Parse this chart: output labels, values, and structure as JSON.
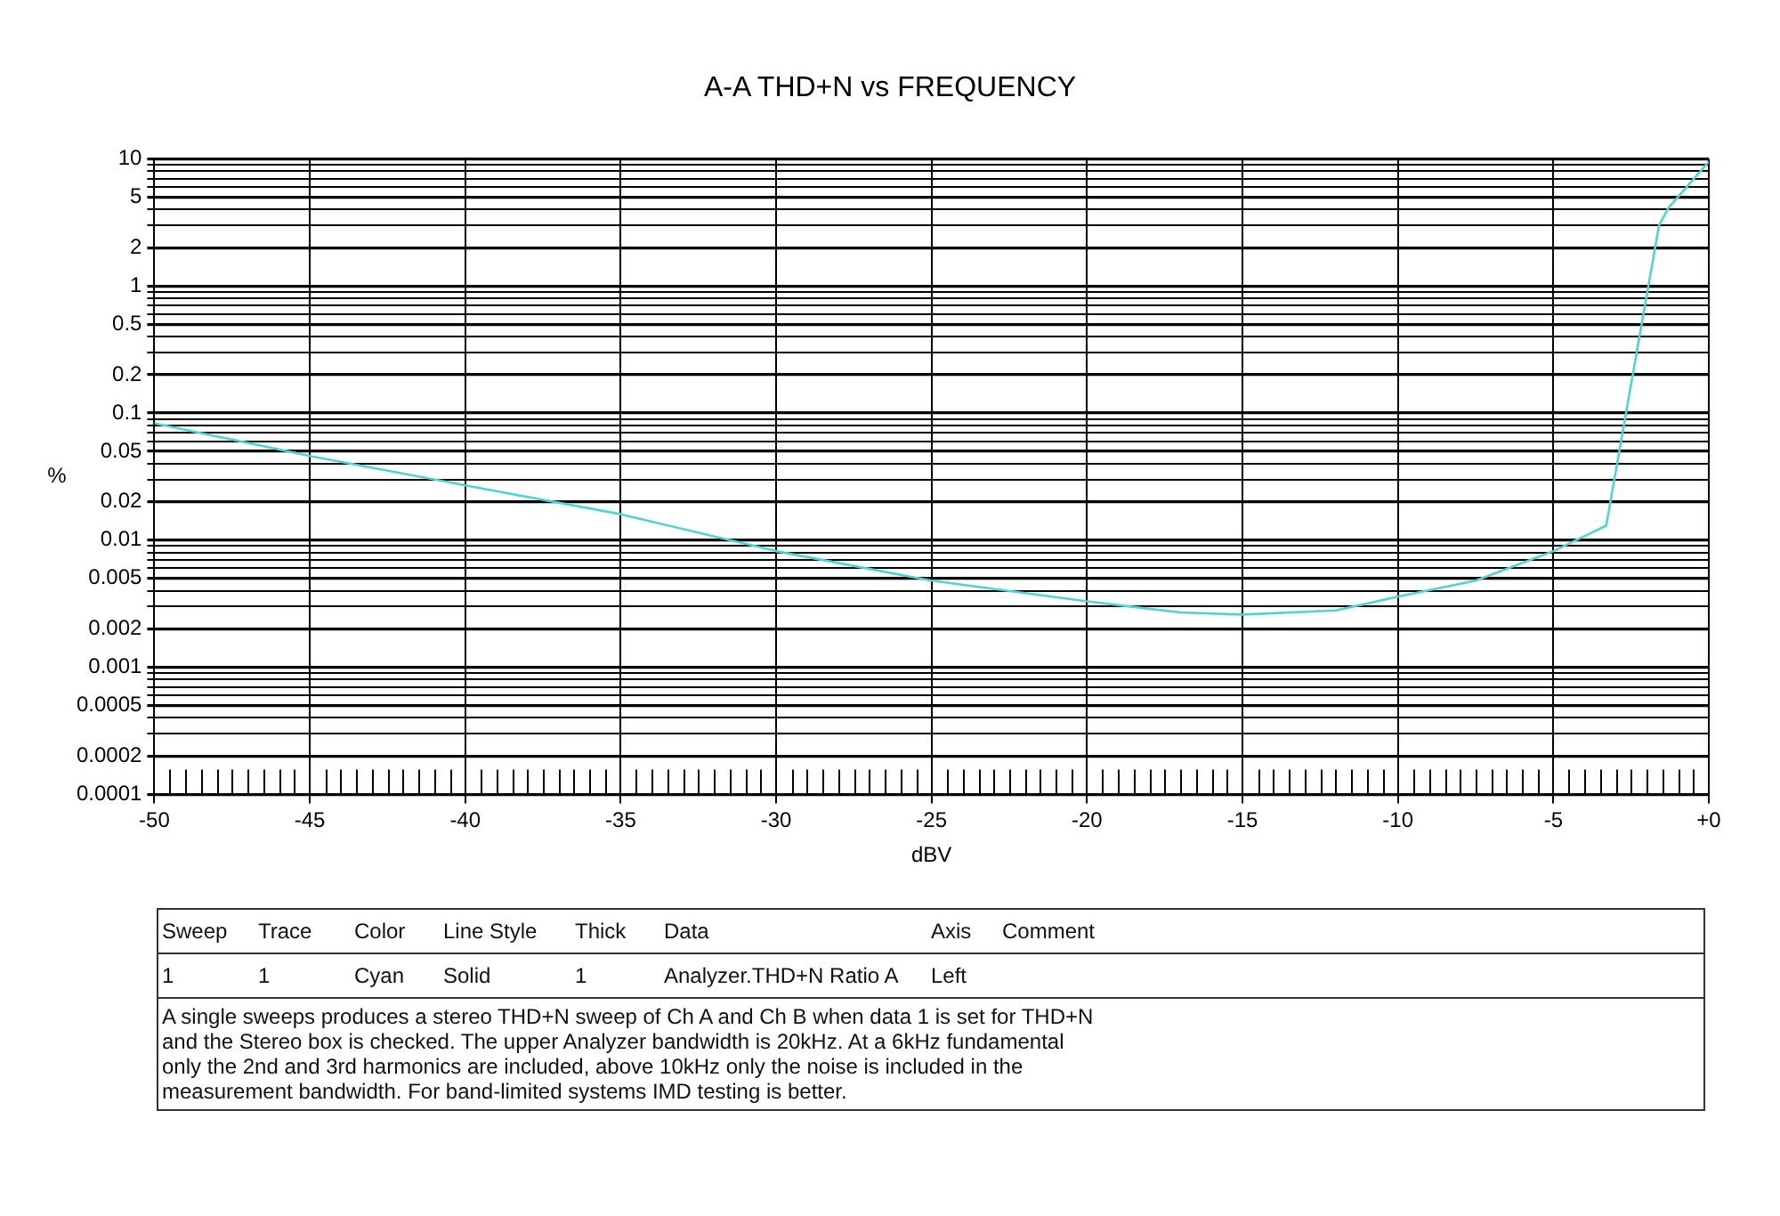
{
  "chart_data": {
    "type": "line",
    "title": "A-A THD+N vs FREQUENCY",
    "xlabel": "dBV",
    "ylabel": "%",
    "x": [
      -50,
      -45,
      -40,
      -35,
      -30,
      -25,
      -20,
      -17,
      -15,
      -12,
      -10,
      -7.5,
      -5,
      -3.3,
      -1.6,
      -1.3,
      0
    ],
    "series": [
      {
        "color": "#4dd5d5",
        "values": [
          0.083,
          0.046,
          0.027,
          0.016,
          0.0082,
          0.0048,
          0.0033,
          0.0027,
          0.0026,
          0.0028,
          0.0036,
          0.0048,
          0.0082,
          0.013,
          3,
          4.1,
          9.5
        ]
      }
    ],
    "log": "y",
    "xlim": [
      -50,
      0
    ],
    "ylim": [
      0.0001,
      10
    ],
    "xticks": [
      -50,
      {
        "value": -49.5,
        "label": null
      },
      {
        "value": -49,
        "label": null
      },
      {
        "value": -48.5,
        "label": null
      },
      {
        "value": -48,
        "label": null
      },
      {
        "value": -47.5,
        "label": null
      },
      {
        "value": -47,
        "label": null
      },
      {
        "value": -46.5,
        "label": null
      },
      {
        "value": -46,
        "label": null
      },
      {
        "value": -45.5,
        "label": null
      },
      -45,
      {
        "value": -44.5,
        "label": null
      },
      {
        "value": -44,
        "label": null
      },
      {
        "value": -43.5,
        "label": null
      },
      {
        "value": -43,
        "label": null
      },
      {
        "value": -42.5,
        "label": null
      },
      {
        "value": -42,
        "label": null
      },
      {
        "value": -41.5,
        "label": null
      },
      {
        "value": -41,
        "label": null
      },
      {
        "value": -40.5,
        "label": null
      },
      -40,
      {
        "value": -39.5,
        "label": null
      },
      {
        "value": -39,
        "label": null
      },
      {
        "value": -38.5,
        "label": null
      },
      {
        "value": -38,
        "label": null
      },
      {
        "value": -37.5,
        "label": null
      },
      {
        "value": -37,
        "label": null
      },
      {
        "value": -36.5,
        "label": null
      },
      {
        "value": -36,
        "label": null
      },
      {
        "value": -35.5,
        "label": null
      },
      -35,
      {
        "value": -34.5,
        "label": null
      },
      {
        "value": -34,
        "label": null
      },
      {
        "value": -33.5,
        "label": null
      },
      {
        "value": -33,
        "label": null
      },
      {
        "value": -32.5,
        "label": null
      },
      {
        "value": -32,
        "label": null
      },
      {
        "value": -31.5,
        "label": null
      },
      {
        "value": -31,
        "label": null
      },
      {
        "value": -30.5,
        "label": null
      },
      -30,
      {
        "value": -29.5,
        "label": null
      },
      {
        "value": -29,
        "label": null
      },
      {
        "value": -28.5,
        "label": null
      },
      {
        "value": -28,
        "label": null
      },
      {
        "value": -27.5,
        "label": null
      },
      {
        "value": -27,
        "label": null
      },
      {
        "value": -26.5,
        "label": null
      },
      {
        "value": -26,
        "label": null
      },
      {
        "value": -25.5,
        "label": null
      },
      -25,
      {
        "value": -24.5,
        "label": null
      },
      {
        "value": -24,
        "label": null
      },
      {
        "value": -23.5,
        "label": null
      },
      {
        "value": -23,
        "label": null
      },
      {
        "value": -22.5,
        "label": null
      },
      {
        "value": -22,
        "label": null
      },
      {
        "value": -21.5,
        "label": null
      },
      {
        "value": -21,
        "label": null
      },
      {
        "value": -20.5,
        "label": null
      },
      -20,
      {
        "value": -19.5,
        "label": null
      },
      {
        "value": -19,
        "label": null
      },
      {
        "value": -18.5,
        "label": null
      },
      {
        "value": -18,
        "label": null
      },
      {
        "value": -17.5,
        "label": null
      },
      {
        "value": -17,
        "label": null
      },
      {
        "value": -16.5,
        "label": null
      },
      {
        "value": -16,
        "label": null
      },
      {
        "value": -15.5,
        "label": null
      },
      -15,
      {
        "value": -14.5,
        "label": null
      },
      {
        "value": -14,
        "label": null
      },
      {
        "value": -13.5,
        "label": null
      },
      {
        "value": -13,
        "label": null
      },
      {
        "value": -12.5,
        "label": null
      },
      {
        "value": -12,
        "label": null
      },
      {
        "value": -11.5,
        "label": null
      },
      {
        "value": -11,
        "label": null
      },
      {
        "value": -10.5,
        "label": null
      },
      -10,
      {
        "value": -9.5,
        "label": null
      },
      {
        "value": -9,
        "label": null
      },
      {
        "value": -8.5,
        "label": null
      },
      {
        "value": -8,
        "label": null
      },
      {
        "value": -7.5,
        "label": null
      },
      {
        "value": -7,
        "label": null
      },
      {
        "value": -6.5,
        "label": null
      },
      {
        "value": -6,
        "label": null
      },
      {
        "value": -5.5,
        "label": null
      },
      -5,
      {
        "value": -4.5,
        "label": null
      },
      {
        "value": -4,
        "label": null
      },
      {
        "value": -3.5,
        "label": null
      },
      {
        "value": -3,
        "label": null
      },
      {
        "value": -2.5,
        "label": null
      },
      {
        "value": -2,
        "label": null
      },
      {
        "value": -1.5,
        "label": null
      },
      {
        "value": -1,
        "label": null
      },
      {
        "value": -0.5,
        "label": null
      },
      {
        "value": 0,
        "label": "+0"
      }
    ],
    "yticks": [
      0.0001,
      0.0002,
      {
        "value": 0.0003,
        "label": null
      },
      {
        "value": 0.0004,
        "label": null
      },
      0.0005,
      {
        "value": 0.0006,
        "label": null
      },
      {
        "value": 0.0007,
        "label": null
      },
      {
        "value": 0.0008,
        "label": null
      },
      {
        "value": 0.0009,
        "label": null
      },
      0.001,
      0.002,
      {
        "value": 0.003,
        "label": null
      },
      {
        "value": 0.004,
        "label": null
      },
      0.005,
      {
        "value": 0.006,
        "label": null
      },
      {
        "value": 0.007,
        "label": null
      },
      {
        "value": 0.008,
        "label": null
      },
      {
        "value": 0.009,
        "label": null
      },
      0.01,
      0.02,
      {
        "value": 0.03,
        "label": null
      },
      {
        "value": 0.04,
        "label": null
      },
      0.05,
      {
        "value": 0.06,
        "label": null
      },
      {
        "value": 0.07,
        "label": null
      },
      {
        "value": 0.08,
        "label": null
      },
      {
        "value": 0.09,
        "label": null
      },
      0.1,
      0.2,
      {
        "value": 0.3,
        "label": null
      },
      {
        "value": 0.4,
        "label": null
      },
      0.5,
      {
        "value": 0.6,
        "label": null
      },
      {
        "value": 0.7,
        "label": null
      },
      {
        "value": 0.8,
        "label": null
      },
      {
        "value": 0.9,
        "label": null
      },
      1,
      2,
      {
        "value": 3,
        "label": null
      },
      {
        "value": 4,
        "label": null
      },
      5,
      {
        "value": 6,
        "label": null
      },
      {
        "value": 7,
        "label": null
      },
      {
        "value": 8,
        "label": null
      },
      {
        "value": 9,
        "label": null
      },
      10
    ],
    "grid": true,
    "legend": false,
    "marker": "none",
    "line_style": "solid",
    "annotations": [
      "Sweep",
      "Trace",
      "Color",
      "Line Style",
      "Thick",
      "Data",
      "Axis",
      "Comment",
      "1",
      "1",
      "Cyan",
      "Solid",
      "1",
      "Analyzer.THD+N Ratio A",
      "Left",
      "A single sweeps produces a stereo THD+N sweep of Ch A and Ch B when data 1 is set for THD+N and the Stereo box is checked.  The upper Analyzer bandwidth is 20kHz.  At a 6kHz fundamental only the 2nd and 3rd harmonics are included, above 10kHz only the noise is included in the measurement bandwidth.  For band-limited systems IMD testing is better."
    ]
  }
}
